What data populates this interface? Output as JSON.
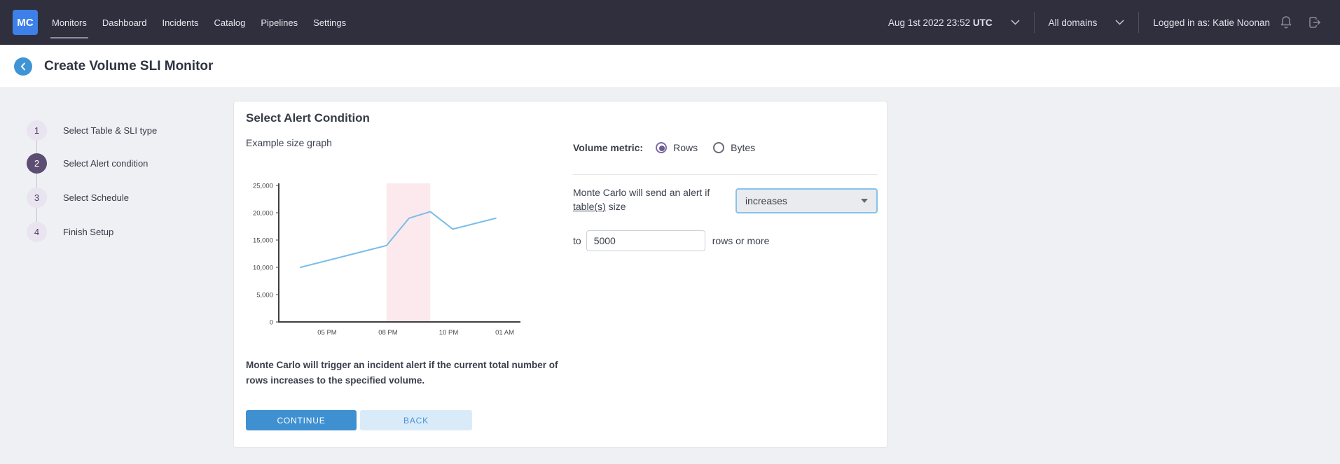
{
  "nav": {
    "logo": "MC",
    "items": [
      "Monitors",
      "Dashboard",
      "Incidents",
      "Catalog",
      "Pipelines",
      "Settings"
    ],
    "active_item": "Monitors",
    "datetime": "Aug 1st 2022 23:52",
    "timezone": "UTC",
    "domain_selector": "All domains",
    "user": "Logged in as: Katie Noonan"
  },
  "header": {
    "title": "Create Volume SLI Monitor"
  },
  "stepper": {
    "items": [
      {
        "number": "1",
        "label": "Select Table & SLI type",
        "active": false
      },
      {
        "number": "2",
        "label": "Select Alert condition",
        "active": true
      },
      {
        "number": "3",
        "label": "Select Schedule",
        "active": false
      },
      {
        "number": "4",
        "label": "Finish Setup",
        "active": false
      }
    ]
  },
  "card": {
    "heading": "Select Alert Condition",
    "chart_caption": "Example size graph",
    "volume_metric": {
      "label": "Volume metric:",
      "options": [
        {
          "label": "Rows",
          "selected": true
        },
        {
          "label": "Bytes",
          "selected": false
        }
      ]
    },
    "condition": {
      "text_before": "Monte Carlo will send an alert if",
      "link_text": "table(s)",
      "text_after": "size",
      "operator_value": "increases",
      "to_label": "to",
      "threshold_value": "5000",
      "threshold_suffix": "rows or more"
    },
    "note_line1": "Monte Carlo will trigger an incident alert if the current total number of",
    "note_line2": "rows increases to the specified volume.",
    "buttons": {
      "continue": "CONTINUE",
      "back": "BACK"
    }
  },
  "chart_data": {
    "type": "line",
    "title": "Example size graph",
    "xlabel": "",
    "ylabel": "",
    "ylim": [
      0,
      25000
    ],
    "y_ticks": [
      0,
      5000,
      10000,
      15000,
      20000,
      25000
    ],
    "x_ticks": [
      {
        "label": "05 PM",
        "f": 0.2
      },
      {
        "label": "08 PM",
        "f": 0.452
      },
      {
        "label": "10 PM",
        "f": 0.703
      },
      {
        "label": "01 AM",
        "f": 0.935
      }
    ],
    "points": [
      {
        "f": 0.09,
        "value": 10000
      },
      {
        "f": 0.446,
        "value": 14000
      },
      {
        "f": 0.539,
        "value": 19000
      },
      {
        "f": 0.627,
        "value": 20200
      },
      {
        "f": 0.72,
        "value": 17000
      },
      {
        "f": 0.898,
        "value": 19000
      }
    ],
    "highlight_band": {
      "from": 0.446,
      "to": 0.627,
      "color": "#fbe9ed"
    },
    "line_color": "#79bde9",
    "axis_color": "#3f3f3f",
    "tick_color": "#4a4a4a",
    "grid": false,
    "legend": "none"
  },
  "colors": {
    "nav_bg": "#2f2f3e",
    "logo_blue": "#3c80e8",
    "back_button_blue": "#3d95d6",
    "active_step_purple": "#5c4d73",
    "inactive_step_lavender": "#e9e4f0",
    "continue_blue": "#3f90d1",
    "back_light_blue": "#d9ebf9",
    "radio_purple": "#6d5b93",
    "select_border_blue": "#85c3ec",
    "content_bg": "#eef0f4"
  }
}
